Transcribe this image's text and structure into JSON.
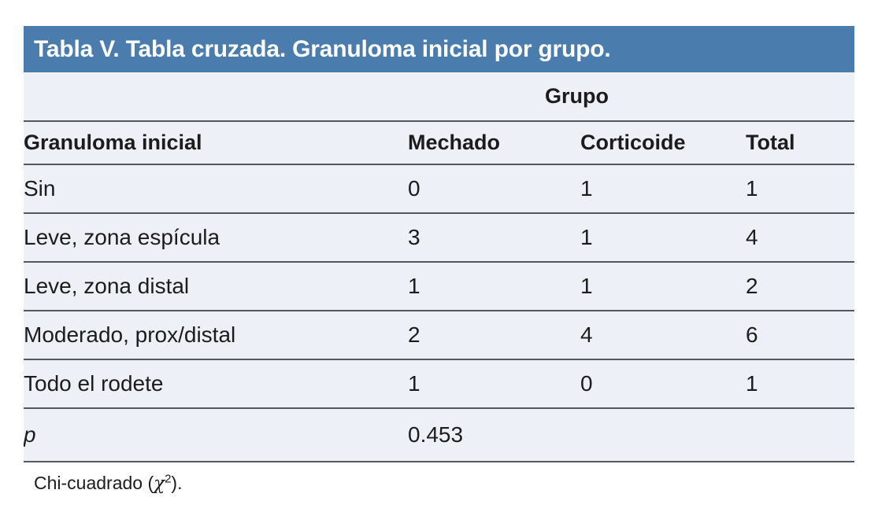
{
  "colors": {
    "title_bg": "#4a7dad",
    "title_text": "#ffffff",
    "table_bg": "#edf0f6",
    "border": "#53565c",
    "body_text": "#1c1c1c"
  },
  "title": "Tabla V. Tabla cruzada. Granuloma inicial por grupo.",
  "table": {
    "group_header": "Grupo",
    "columns": [
      "Granuloma inicial",
      "Mechado",
      "Corticoide",
      "Total"
    ],
    "rows": [
      [
        "Sin",
        "0",
        "1",
        "1"
      ],
      [
        "Leve, zona espícula",
        "3",
        "1",
        "4"
      ],
      [
        "Leve, zona distal",
        "1",
        "1",
        "2"
      ],
      [
        "Moderado, prox/distal",
        "2",
        "4",
        "6"
      ],
      [
        "Todo el rodete",
        "1",
        "0",
        "1"
      ]
    ],
    "p_label": "p",
    "p_value": "0.453"
  },
  "footnote": {
    "prefix": "Chi-cuadrado (",
    "chi": "χ",
    "sup": "2",
    "suffix": ")."
  }
}
